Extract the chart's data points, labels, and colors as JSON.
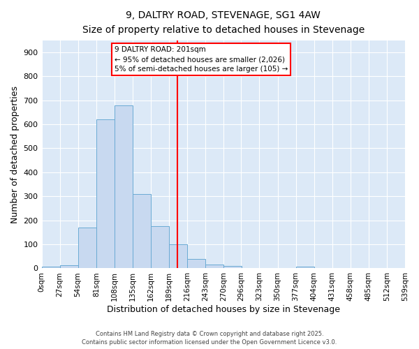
{
  "title": "9, DALTRY ROAD, STEVENAGE, SG1 4AW",
  "subtitle": "Size of property relative to detached houses in Stevenage",
  "xlabel": "Distribution of detached houses by size in Stevenage",
  "ylabel": "Number of detached properties",
  "bar_color": "#c8d9f0",
  "bar_edge_color": "#6aaad4",
  "plot_bg_color": "#dce9f7",
  "fig_bg_color": "#ffffff",
  "grid_color": "#ffffff",
  "red_line_x": 201,
  "annotation_title": "9 DALTRY ROAD: 201sqm",
  "annotation_line1": "← 95% of detached houses are smaller (2,026)",
  "annotation_line2": "5% of semi-detached houses are larger (105) →",
  "bin_edges": [
    0,
    27,
    54,
    81,
    108,
    135,
    162,
    189,
    216,
    243,
    270,
    296,
    323,
    350,
    377,
    404,
    431,
    458,
    485,
    512,
    539
  ],
  "bar_heights": [
    7,
    12,
    170,
    620,
    680,
    310,
    175,
    100,
    40,
    15,
    10,
    0,
    0,
    0,
    7,
    0,
    0,
    0,
    0,
    0
  ],
  "xlim": [
    0,
    539
  ],
  "ylim": [
    0,
    950
  ],
  "yticks": [
    0,
    100,
    200,
    300,
    400,
    500,
    600,
    700,
    800,
    900
  ],
  "figsize": [
    6.0,
    5.0
  ],
  "dpi": 100,
  "footer_line1": "Contains HM Land Registry data © Crown copyright and database right 2025.",
  "footer_line2": "Contains public sector information licensed under the Open Government Licence v3.0."
}
